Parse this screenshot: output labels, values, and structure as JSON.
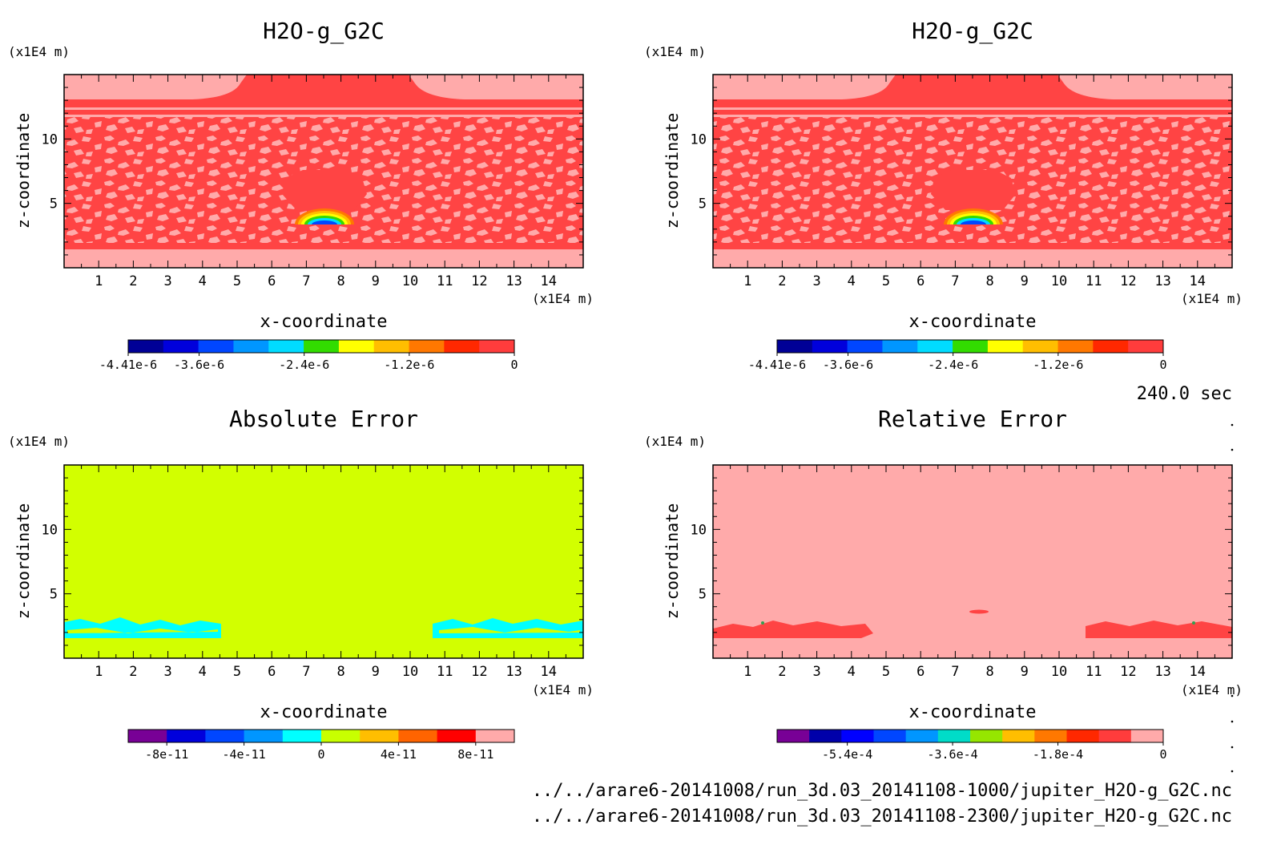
{
  "time_label": "240.0 sec",
  "files": [
    "../../arare6-20141008/run_3d.03_20141108-1000/jupiter_H2O-g_G2C.nc",
    "../../arare6-20141008/run_3d.03_20141108-2300/jupiter_H2O-g_G2C.nc"
  ],
  "chart_data": [
    {
      "type": "heatmap",
      "title": "H2O-g_G2C",
      "xlabel": "x-coordinate",
      "ylabel": "z-coordinate",
      "x_unit": "(x1E4 m)",
      "y_unit": "(x1E4 m)",
      "xlim": [
        0,
        15
      ],
      "ylim": [
        0,
        15
      ],
      "x_ticks": [
        "1",
        "2",
        "3",
        "4",
        "5",
        "6",
        "7",
        "8",
        "9",
        "10",
        "11",
        "12",
        "13",
        "14"
      ],
      "y_ticks": [
        "5",
        "10"
      ],
      "pattern": "field",
      "colorbar": {
        "range": [
          -4.41e-06,
          0
        ],
        "colors": [
          "#000096",
          "#0000dc",
          "#0046ff",
          "#0096ff",
          "#00dcff",
          "#32dc00",
          "#ffff00",
          "#ffbe00",
          "#ff7800",
          "#ff2800",
          "#ff3c3c"
        ],
        "tick_values": [
          -4.41e-06,
          -3.6e-06,
          -2.4e-06,
          -1.2e-06,
          0
        ],
        "tick_labels": [
          "-4.41e-6",
          "-3.6e-6",
          "-2.4e-6",
          "-1.2e-6",
          "0"
        ]
      }
    },
    {
      "type": "heatmap",
      "title": "H2O-g_G2C",
      "xlabel": "x-coordinate",
      "ylabel": "z-coordinate",
      "x_unit": "(x1E4 m)",
      "y_unit": "(x1E4 m)",
      "xlim": [
        0,
        15
      ],
      "ylim": [
        0,
        15
      ],
      "x_ticks": [
        "1",
        "2",
        "3",
        "4",
        "5",
        "6",
        "7",
        "8",
        "9",
        "10",
        "11",
        "12",
        "13",
        "14"
      ],
      "y_ticks": [
        "5",
        "10"
      ],
      "pattern": "field",
      "colorbar": {
        "range": [
          -4.41e-06,
          0
        ],
        "colors": [
          "#000096",
          "#0000dc",
          "#0046ff",
          "#0096ff",
          "#00dcff",
          "#32dc00",
          "#ffff00",
          "#ffbe00",
          "#ff7800",
          "#ff2800",
          "#ff3c3c"
        ],
        "tick_values": [
          -4.41e-06,
          -3.6e-06,
          -2.4e-06,
          -1.2e-06,
          0
        ],
        "tick_labels": [
          "-4.41e-6",
          "-3.6e-6",
          "-2.4e-6",
          "-1.2e-6",
          "0"
        ]
      }
    },
    {
      "type": "heatmap",
      "title": "Absolute Error",
      "xlabel": "x-coordinate",
      "ylabel": "z-coordinate",
      "x_unit": "(x1E4 m)",
      "y_unit": "(x1E4 m)",
      "xlim": [
        0,
        15
      ],
      "ylim": [
        0,
        15
      ],
      "x_ticks": [
        "1",
        "2",
        "3",
        "4",
        "5",
        "6",
        "7",
        "8",
        "9",
        "10",
        "11",
        "12",
        "13",
        "14"
      ],
      "y_ticks": [
        "5",
        "10"
      ],
      "pattern": "abs",
      "colorbar": {
        "range": [
          -1e-10,
          1e-10
        ],
        "colors": [
          "#780096",
          "#0000dc",
          "#0046ff",
          "#0096ff",
          "#00ffff",
          "#c8ff00",
          "#ffbe00",
          "#ff6400",
          "#ff0000",
          "#ffaaaa"
        ],
        "tick_values": [
          -8e-11,
          -4e-11,
          0,
          4e-11,
          8e-11
        ],
        "tick_labels": [
          "-8e-11",
          "-4e-11",
          "0",
          "4e-11",
          "8e-11"
        ]
      }
    },
    {
      "type": "heatmap",
      "title": "Relative Error",
      "xlabel": "x-coordinate",
      "ylabel": "z-coordinate",
      "x_unit": "(x1E4 m)",
      "y_unit": "(x1E4 m)",
      "xlim": [
        0,
        15
      ],
      "ylim": [
        0,
        15
      ],
      "x_ticks": [
        "1",
        "2",
        "3",
        "4",
        "5",
        "6",
        "7",
        "8",
        "9",
        "10",
        "11",
        "12",
        "13",
        "14"
      ],
      "y_ticks": [
        "5",
        "10"
      ],
      "pattern": "rel",
      "colorbar": {
        "range": [
          -0.00066,
          0
        ],
        "colors": [
          "#780096",
          "#0000aa",
          "#0000ff",
          "#0046ff",
          "#0096ff",
          "#00dcc8",
          "#96e600",
          "#ffbe00",
          "#ff7800",
          "#ff2800",
          "#ff3c3c",
          "#ffaaaa"
        ],
        "tick_values": [
          -0.00054,
          -0.00036,
          -0.00018,
          0
        ],
        "tick_labels": [
          "-5.4e-4",
          "-3.6e-4",
          "-1.8e-4",
          "0"
        ]
      }
    }
  ]
}
